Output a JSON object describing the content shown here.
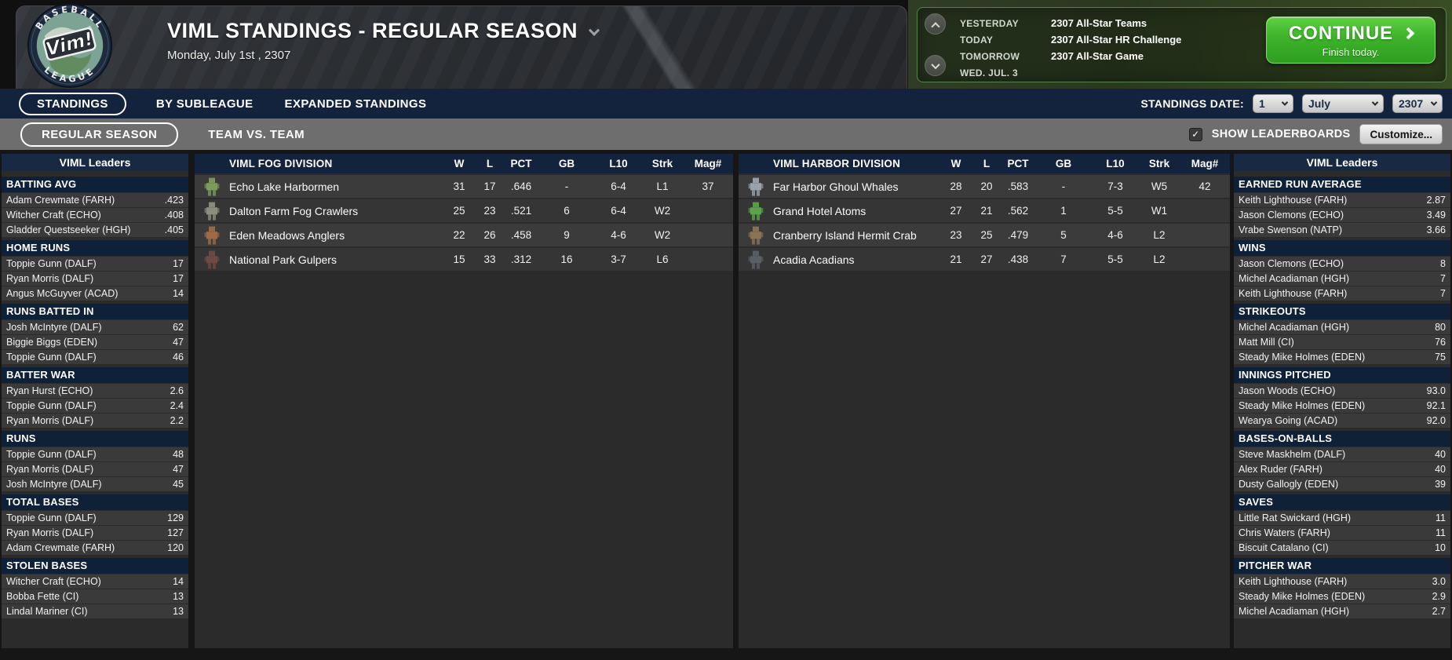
{
  "header": {
    "logo_top": "BASEBALL",
    "logo_mid": "Vim!",
    "logo_bottom": "LEAGUE",
    "title": "VIML STANDINGS - REGULAR SEASON",
    "date": "Monday, July 1st , 2307",
    "schedule": [
      {
        "label": "YESTERDAY",
        "value": "2307 All-Star Teams"
      },
      {
        "label": "TODAY",
        "value": "2307 All-Star HR Challenge"
      },
      {
        "label": "TOMORROW",
        "value": "2307 All-Star Game"
      },
      {
        "label": "WED. JUL. 3",
        "value": ""
      }
    ],
    "continue_label": "CONTINUE",
    "continue_sub": "Finish today."
  },
  "tabs": {
    "standings": "STANDINGS",
    "by_subleague": "BY SUBLEAGUE",
    "expanded": "EXPANDED STANDINGS",
    "date_label": "STANDINGS DATE:",
    "day": "1",
    "month": "July",
    "year": "2307"
  },
  "subtabs": {
    "regular_season": "REGULAR SEASON",
    "team_vs_team": "TEAM VS. TEAM",
    "show_leaderboards": "SHOW LEADERBOARDS",
    "customize": "Customize..."
  },
  "colors": {
    "accent_navy": "#14233d",
    "continue_green": "#3db32a",
    "schedule_border_green": "#57824d",
    "row_gray": "#3a3a3a"
  },
  "divisions": [
    {
      "name": "VIML FOG DIVISION",
      "columns": [
        "W",
        "L",
        "PCT",
        "GB",
        "L10",
        "Strk",
        "Mag#"
      ],
      "teams": [
        {
          "name": "Echo Lake Harbormen",
          "w": "31",
          "l": "17",
          "pct": ".646",
          "gb": "-",
          "l10": "6-4",
          "strk": "L1",
          "mag": "37",
          "icon_color": "#7d9c5a"
        },
        {
          "name": "Dalton Farm Fog Crawlers",
          "w": "25",
          "l": "23",
          "pct": ".521",
          "gb": "6",
          "l10": "6-4",
          "strk": "W2",
          "mag": "",
          "icon_color": "#8d8d7f"
        },
        {
          "name": "Eden Meadows Anglers",
          "w": "22",
          "l": "26",
          "pct": ".458",
          "gb": "9",
          "l10": "4-6",
          "strk": "W2",
          "mag": "",
          "icon_color": "#a06a45"
        },
        {
          "name": "National Park Gulpers",
          "w": "15",
          "l": "33",
          "pct": ".312",
          "gb": "16",
          "l10": "3-7",
          "strk": "L6",
          "mag": "",
          "icon_color": "#6e4a45"
        }
      ]
    },
    {
      "name": "VIML HARBOR DIVISION",
      "columns": [
        "W",
        "L",
        "PCT",
        "GB",
        "L10",
        "Strk",
        "Mag#"
      ],
      "teams": [
        {
          "name": "Far Harbor Ghoul Whales",
          "w": "28",
          "l": "20",
          "pct": ".583",
          "gb": "-",
          "l10": "7-3",
          "strk": "W5",
          "mag": "42",
          "icon_color": "#9aa3ab"
        },
        {
          "name": "Grand Hotel Atoms",
          "w": "27",
          "l": "21",
          "pct": ".562",
          "gb": "1",
          "l10": "5-5",
          "strk": "W1",
          "mag": "",
          "icon_color": "#5aa34a"
        },
        {
          "name": "Cranberry Island Hermit Crab",
          "w": "23",
          "l": "25",
          "pct": ".479",
          "gb": "5",
          "l10": "4-6",
          "strk": "L2",
          "mag": "",
          "icon_color": "#8a7455"
        },
        {
          "name": "Acadia Acadians",
          "w": "21",
          "l": "27",
          "pct": ".438",
          "gb": "7",
          "l10": "5-5",
          "strk": "L2",
          "mag": "",
          "icon_color": "#5a5f66"
        }
      ]
    }
  ],
  "left_leaders": {
    "title": "VIML Leaders",
    "sections": [
      {
        "title": "BATTING AVG",
        "rows": [
          {
            "name": "Adam Crewmate (FARH)",
            "value": ".423"
          },
          {
            "name": "Witcher Craft (ECHO)",
            "value": ".408"
          },
          {
            "name": "Gladder Questseeker (HGH)",
            "value": ".405"
          }
        ]
      },
      {
        "title": "HOME RUNS",
        "rows": [
          {
            "name": "Toppie Gunn (DALF)",
            "value": "17"
          },
          {
            "name": "Ryan Morris (DALF)",
            "value": "17"
          },
          {
            "name": "Angus McGuyver (ACAD)",
            "value": "14"
          }
        ]
      },
      {
        "title": "RUNS BATTED IN",
        "rows": [
          {
            "name": "Josh McIntyre (DALF)",
            "value": "62"
          },
          {
            "name": "Biggie Biggs (EDEN)",
            "value": "47"
          },
          {
            "name": "Toppie Gunn (DALF)",
            "value": "46"
          }
        ]
      },
      {
        "title": "BATTER WAR",
        "rows": [
          {
            "name": "Ryan Hurst (ECHO)",
            "value": "2.6"
          },
          {
            "name": "Toppie Gunn (DALF)",
            "value": "2.4"
          },
          {
            "name": "Ryan Morris (DALF)",
            "value": "2.2"
          }
        ]
      },
      {
        "title": "RUNS",
        "rows": [
          {
            "name": "Toppie Gunn (DALF)",
            "value": "48"
          },
          {
            "name": "Ryan Morris (DALF)",
            "value": "47"
          },
          {
            "name": "Josh McIntyre (DALF)",
            "value": "45"
          }
        ]
      },
      {
        "title": "TOTAL BASES",
        "rows": [
          {
            "name": "Toppie Gunn (DALF)",
            "value": "129"
          },
          {
            "name": "Ryan Morris (DALF)",
            "value": "127"
          },
          {
            "name": "Adam Crewmate (FARH)",
            "value": "120"
          }
        ]
      },
      {
        "title": "STOLEN BASES",
        "rows": [
          {
            "name": "Witcher Craft (ECHO)",
            "value": "14"
          },
          {
            "name": "Bobba Fette (CI)",
            "value": "13"
          },
          {
            "name": "Lindal Mariner (CI)",
            "value": "13"
          }
        ]
      }
    ]
  },
  "right_leaders": {
    "title": "VIML Leaders",
    "sections": [
      {
        "title": "EARNED RUN AVERAGE",
        "rows": [
          {
            "name": "Keith Lighthouse (FARH)",
            "value": "2.87"
          },
          {
            "name": "Jason Clemons (ECHO)",
            "value": "3.49"
          },
          {
            "name": "Vrabe Swenson (NATP)",
            "value": "3.66"
          }
        ]
      },
      {
        "title": "WINS",
        "rows": [
          {
            "name": "Jason Clemons (ECHO)",
            "value": "8"
          },
          {
            "name": "Michel Acadiaman (HGH)",
            "value": "7"
          },
          {
            "name": "Keith Lighthouse (FARH)",
            "value": "7"
          }
        ]
      },
      {
        "title": "STRIKEOUTS",
        "rows": [
          {
            "name": "Michel Acadiaman (HGH)",
            "value": "80"
          },
          {
            "name": "Matt Mill (CI)",
            "value": "76"
          },
          {
            "name": "Steady Mike Holmes (EDEN)",
            "value": "75"
          }
        ]
      },
      {
        "title": "INNINGS PITCHED",
        "rows": [
          {
            "name": "Jason Woods (ECHO)",
            "value": "93.0"
          },
          {
            "name": "Steady Mike Holmes (EDEN)",
            "value": "92.1"
          },
          {
            "name": "Wearya Going (ACAD)",
            "value": "92.0"
          }
        ]
      },
      {
        "title": "BASES-ON-BALLS",
        "rows": [
          {
            "name": "Steve Maskhelm (DALF)",
            "value": "40"
          },
          {
            "name": "Alex Ruder (FARH)",
            "value": "40"
          },
          {
            "name": "Dusty Gallogly (EDEN)",
            "value": "39"
          }
        ]
      },
      {
        "title": "SAVES",
        "rows": [
          {
            "name": "Little Rat Swickard (HGH)",
            "value": "11"
          },
          {
            "name": "Chris Waters (FARH)",
            "value": "11"
          },
          {
            "name": "Biscuit Catalano (CI)",
            "value": "10"
          }
        ]
      },
      {
        "title": "PITCHER WAR",
        "rows": [
          {
            "name": "Keith Lighthouse (FARH)",
            "value": "3.0"
          },
          {
            "name": "Steady Mike Holmes (EDEN)",
            "value": "2.9"
          },
          {
            "name": "Michel Acadiaman (HGH)",
            "value": "2.7"
          }
        ]
      }
    ]
  }
}
